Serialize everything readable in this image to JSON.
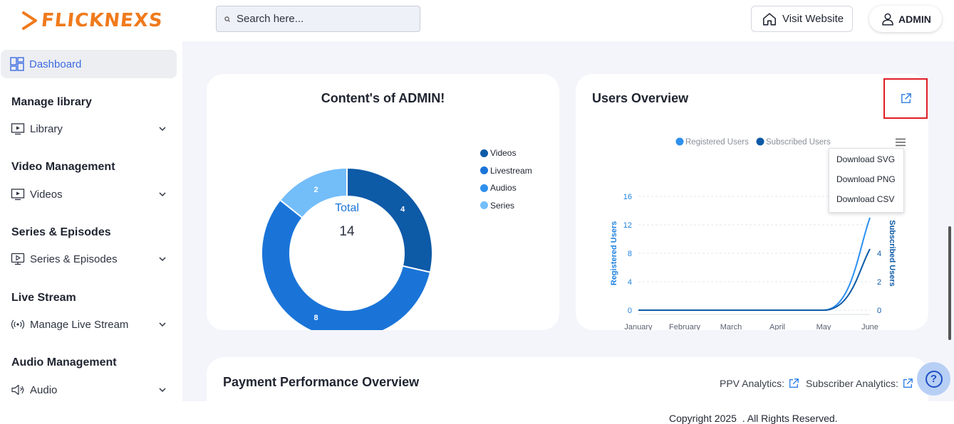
{
  "header": {
    "logo_text": "FLICKNEXS",
    "search_placeholder": "Search here...",
    "visit_website_label": "Visit Website",
    "admin_label": "ADMIN"
  },
  "sidebar": {
    "dashboard_label": "Dashboard",
    "sections": [
      {
        "title": "Manage library",
        "item": "Library",
        "icon": "tv-play-icon"
      },
      {
        "title": "Video Management",
        "item": "Videos",
        "icon": "tv-play-icon"
      },
      {
        "title": "Series & Episodes",
        "item": "Series & Episodes",
        "icon": "monitor-play-icon"
      },
      {
        "title": "Live Stream",
        "item": "Manage Live Stream",
        "icon": "broadcast-icon"
      },
      {
        "title": "Audio Management",
        "item": "Audio",
        "icon": "speaker-icon"
      }
    ]
  },
  "content_card": {
    "title": "Content's of ADMIN!",
    "total_label": "Total",
    "total_value": "14"
  },
  "users_card": {
    "title": "Users Overview",
    "menu": [
      "Download SVG",
      "Download PNG",
      "Download CSV"
    ]
  },
  "payment_card": {
    "title": "Payment Performance Overview",
    "ppv_label": "PPV Analytics:",
    "subscriber_label": "Subscriber Analytics:"
  },
  "footer": {
    "copyright": "Copyright 2025  . All Rights Reserved."
  },
  "colors": {
    "accent": "#3c6ae0",
    "brand": "#f07a1c",
    "highlight_box": "#e01e25"
  },
  "chart_data": [
    {
      "type": "pie",
      "variant": "donut",
      "title": "Content's of ADMIN!",
      "categories": [
        "Videos",
        "Livestream",
        "Audios",
        "Series"
      ],
      "values": [
        4,
        8,
        0,
        2
      ],
      "colors": [
        "#0d5aa7",
        "#1a74d8",
        "#2e90ee",
        "#73bdf9"
      ],
      "legend_position": "right"
    },
    {
      "type": "line",
      "x": [
        "January",
        "February",
        "March",
        "April",
        "May",
        "June"
      ],
      "series": [
        {
          "name": "Registered Users",
          "values": [
            0,
            0,
            0,
            0,
            0,
            13
          ],
          "color": "#2e90ee",
          "axis": "left"
        },
        {
          "name": "Subscribed Users",
          "values": [
            0,
            0,
            0,
            0,
            0,
            4.3
          ],
          "color": "#0d5aa7",
          "axis": "right"
        }
      ],
      "ylabel": "Registered Users",
      "y2label": "Subscribed Users",
      "yticks": [
        0,
        4,
        8,
        12,
        16
      ],
      "y2ticks": [
        0,
        2,
        4
      ],
      "ylim": [
        0,
        16
      ],
      "y2lim": [
        0,
        8
      ],
      "legend_position": "top",
      "grid": true
    }
  ]
}
